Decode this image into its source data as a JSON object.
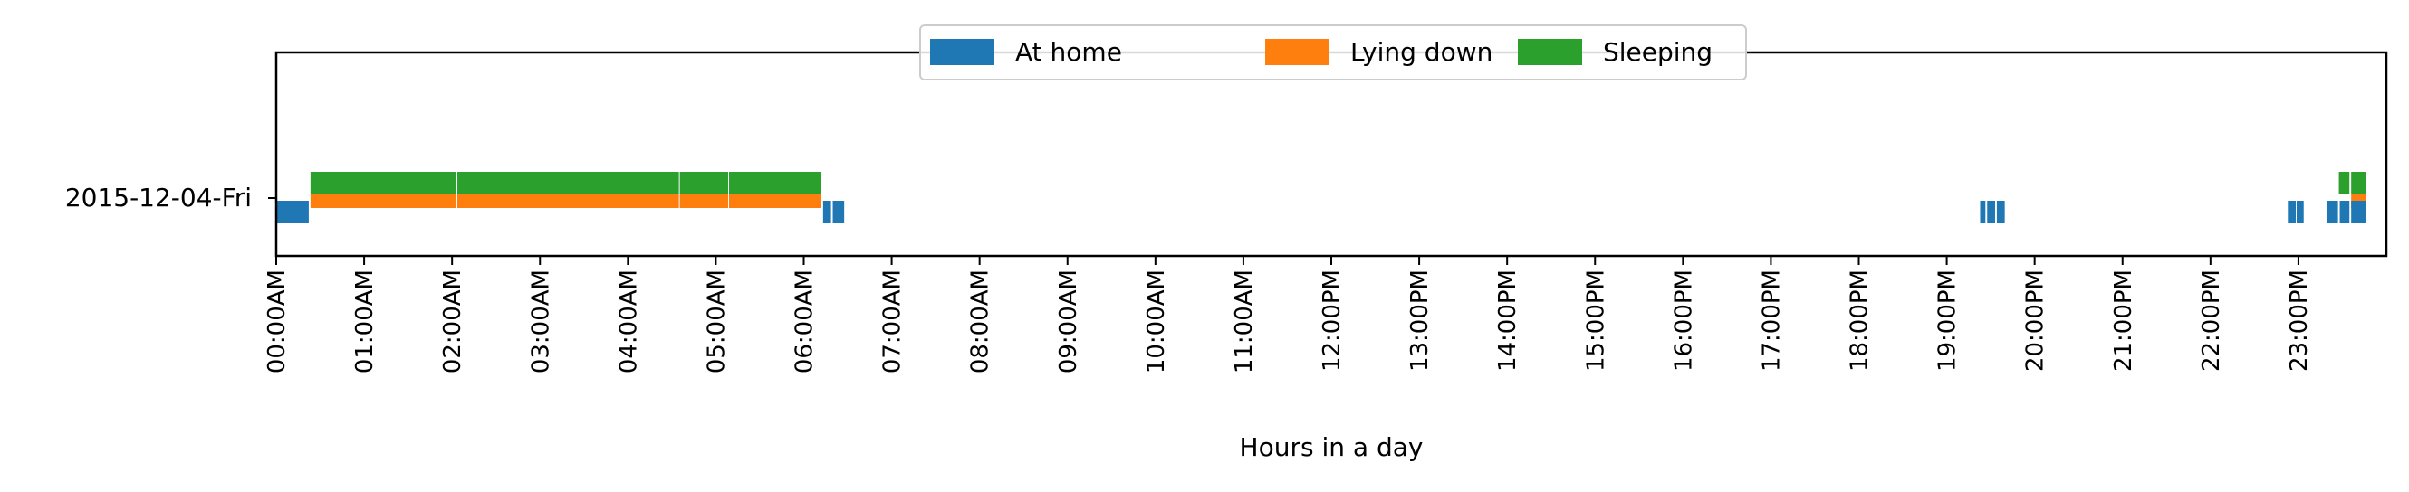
{
  "chart_data": {
    "type": "timeline",
    "title": "",
    "xlabel": "Hours in a day",
    "ylabel": "",
    "row_label": "2015-12-04-Fri",
    "xlim": [
      0,
      24
    ],
    "x_unit": "hours",
    "tick_labels": [
      "00:00AM",
      "01:00AM",
      "02:00AM",
      "03:00AM",
      "04:00AM",
      "05:00AM",
      "06:00AM",
      "07:00AM",
      "08:00AM",
      "09:00AM",
      "10:00AM",
      "11:00AM",
      "12:00PM",
      "13:00PM",
      "14:00PM",
      "15:00PM",
      "16:00PM",
      "17:00PM",
      "18:00PM",
      "19:00PM",
      "20:00PM",
      "21:00PM",
      "22:00PM",
      "23:00PM"
    ],
    "legend_position": "top-center",
    "series": [
      {
        "name": "At home",
        "color": "#1f77b4",
        "intervals": [
          [
            0.0,
            0.37
          ],
          [
            6.22,
            6.31
          ],
          [
            6.33,
            6.46
          ],
          [
            19.38,
            19.44
          ],
          [
            19.46,
            19.55
          ],
          [
            19.57,
            19.66
          ],
          [
            22.88,
            22.97
          ],
          [
            22.98,
            23.06
          ],
          [
            23.32,
            23.45
          ],
          [
            23.47,
            23.58
          ],
          [
            23.6,
            23.77
          ]
        ]
      },
      {
        "name": "Lying down",
        "color": "#ff7f0e",
        "intervals": [
          [
            0.39,
            2.05
          ],
          [
            2.06,
            4.58
          ],
          [
            4.59,
            5.14
          ],
          [
            5.15,
            6.2
          ],
          [
            23.6,
            23.77
          ]
        ]
      },
      {
        "name": "Sleeping",
        "color": "#2ca02c",
        "intervals": [
          [
            0.39,
            2.05
          ],
          [
            2.06,
            4.58
          ],
          [
            4.59,
            5.14
          ],
          [
            5.15,
            6.2
          ],
          [
            23.46,
            23.58
          ],
          [
            23.6,
            23.77
          ]
        ]
      }
    ]
  }
}
